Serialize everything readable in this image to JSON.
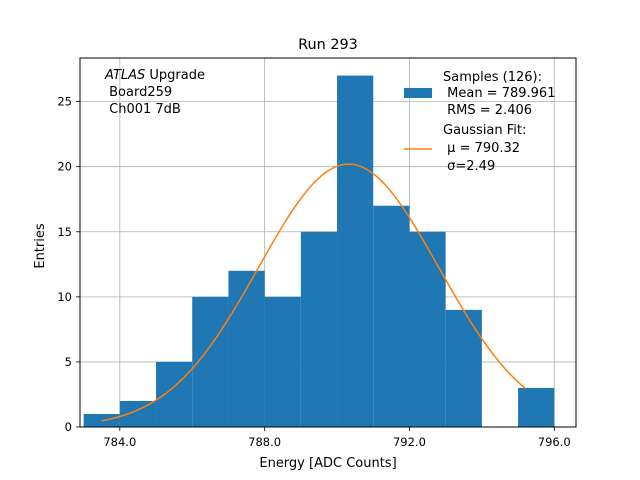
{
  "chart_data": {
    "type": "bar",
    "title": "Run 293",
    "xlabel": "Energy [ADC Counts]",
    "ylabel": "Entries",
    "xlim": [
      782.9,
      796.6
    ],
    "ylim": [
      0,
      28.35
    ],
    "grid": true,
    "x_ticks": [
      784,
      788,
      792,
      796
    ],
    "x_tick_labels": [
      "784.0",
      "788.0",
      "792.0",
      "796.0"
    ],
    "y_ticks": [
      0,
      5,
      10,
      15,
      20,
      25
    ],
    "y_tick_labels": [
      "0",
      "5",
      "10",
      "15",
      "20",
      "25"
    ],
    "bin_width": 1,
    "bins": [
      {
        "x0": 783,
        "x1": 784,
        "count": 1
      },
      {
        "x0": 784,
        "x1": 785,
        "count": 2
      },
      {
        "x0": 785,
        "x1": 786,
        "count": 5
      },
      {
        "x0": 786,
        "x1": 787,
        "count": 10
      },
      {
        "x0": 787,
        "x1": 788,
        "count": 12
      },
      {
        "x0": 788,
        "x1": 789,
        "count": 10
      },
      {
        "x0": 789,
        "x1": 790,
        "count": 15
      },
      {
        "x0": 790,
        "x1": 791,
        "count": 27
      },
      {
        "x0": 791,
        "x1": 792,
        "count": 17
      },
      {
        "x0": 792,
        "x1": 793,
        "count": 15
      },
      {
        "x0": 793,
        "x1": 794,
        "count": 9
      },
      {
        "x0": 794,
        "x1": 795,
        "count": 0
      },
      {
        "x0": 795,
        "x1": 796,
        "count": 3
      }
    ],
    "fit": {
      "name": "Gaussian Fit",
      "mu": 790.32,
      "sigma": 2.49,
      "amplitude": 20.2,
      "x_range": [
        783.5,
        795.2
      ]
    },
    "colors": {
      "histogram": "#1f77b4",
      "fit": "#ff7f0e",
      "grid": "#b0b0b0"
    },
    "annotation": {
      "italic": "ATLAS",
      "line1_rest": " Upgrade",
      "line2": " Board259",
      "line3": " Ch001 7dB"
    },
    "legend": {
      "placement": "top-right",
      "samples_line1": "Samples (126):",
      "samples_line2": " Mean = 789.961",
      "samples_line3": " RMS = 2.406",
      "fit_line1": "Gaussian Fit:",
      "fit_line2": " μ = 790.32",
      "fit_line3": " σ=2.49"
    }
  }
}
